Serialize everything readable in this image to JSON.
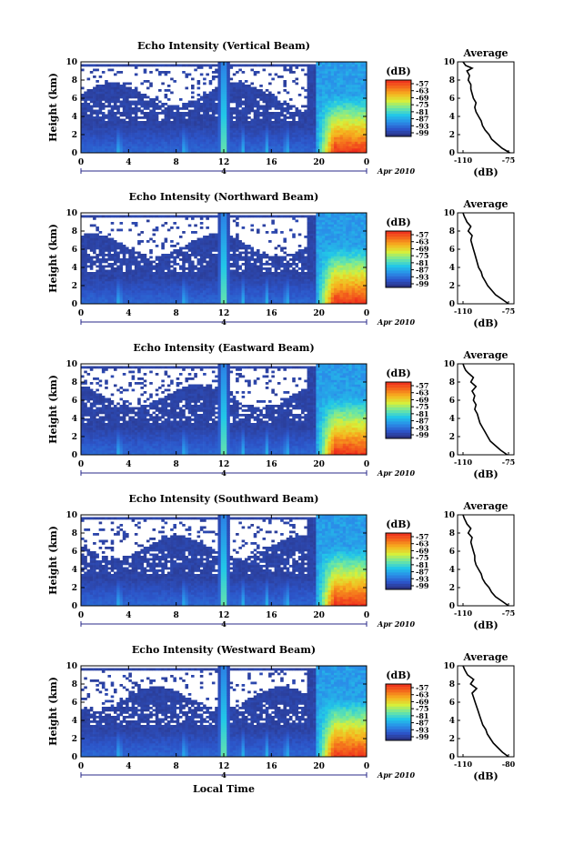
{
  "chart_data": [
    {
      "type": "heatmap",
      "title": "Echo Intensity (Vertical Beam)",
      "ylabel": "Height (km)",
      "ylim": [
        0,
        10
      ],
      "yticks": [
        "0",
        "2",
        "4",
        "6",
        "8",
        "10"
      ],
      "xlim": [
        0,
        24
      ],
      "xticks": [
        "0",
        "4",
        "8",
        "12",
        "16",
        "20",
        "0"
      ],
      "date_label": "Apr 2010",
      "date_day": "4",
      "colorbar": {
        "unit": "(dB)",
        "ticks": [
          "-57",
          "-63",
          "-69",
          "-75",
          "-81",
          "-87",
          "-93",
          "-99"
        ]
      },
      "profile": {
        "title": "Average",
        "xlabel": "(dB)",
        "xticks": [
          "-110",
          "-75"
        ],
        "yticks": [
          "0",
          "2",
          "4",
          "6",
          "8",
          "10"
        ],
        "x": [
          -74,
          -80,
          -84,
          -88,
          -90,
          -93,
          -95,
          -96,
          -98,
          -100,
          -101,
          -100,
          -102,
          -103,
          -104,
          -104,
          -106,
          -105,
          -107,
          -103,
          -108,
          -110
        ],
        "y": [
          0,
          0.5,
          1,
          1.5,
          2,
          2.5,
          3,
          3.5,
          4,
          4.5,
          5,
          5.5,
          6,
          6.5,
          7,
          7.5,
          8,
          8.5,
          9,
          9.3,
          9.6,
          10
        ]
      }
    },
    {
      "type": "heatmap",
      "title": "Echo Intensity (Northward Beam)",
      "ylabel": "Height (km)",
      "ylim": [
        0,
        10
      ],
      "yticks": [
        "0",
        "2",
        "4",
        "6",
        "8",
        "10"
      ],
      "xlim": [
        0,
        24
      ],
      "xticks": [
        "0",
        "4",
        "8",
        "12",
        "16",
        "20",
        "0"
      ],
      "date_label": "Apr 2010",
      "date_day": "4",
      "colorbar": {
        "unit": "(dB)",
        "ticks": [
          "-57",
          "-63",
          "-69",
          "-75",
          "-81",
          "-87",
          "-93",
          "-99"
        ]
      },
      "profile": {
        "title": "Average",
        "xlabel": "(dB)",
        "xticks": [
          "-110",
          "-75"
        ],
        "yticks": [
          "0",
          "2",
          "4",
          "6",
          "8",
          "10"
        ],
        "x": [
          -75,
          -80,
          -85,
          -88,
          -91,
          -93,
          -95,
          -96,
          -98,
          -99,
          -100,
          -101,
          -102,
          -103,
          -104,
          -103,
          -106,
          -104,
          -107,
          -108,
          -109,
          -110
        ],
        "y": [
          0,
          0.5,
          1,
          1.5,
          2,
          2.5,
          3,
          3.5,
          4,
          4.5,
          5,
          5.5,
          6,
          6.5,
          7,
          7.5,
          8,
          8.5,
          9,
          9.3,
          9.6,
          10
        ]
      }
    },
    {
      "type": "heatmap",
      "title": "Echo Intensity (Eastward Beam)",
      "ylabel": "Height (km)",
      "ylim": [
        0,
        10
      ],
      "yticks": [
        "0",
        "2",
        "4",
        "6",
        "8",
        "10"
      ],
      "xlim": [
        0,
        24
      ],
      "xticks": [
        "0",
        "4",
        "8",
        "12",
        "16",
        "20",
        "0"
      ],
      "date_label": "Apr 2010",
      "date_day": "4",
      "colorbar": {
        "unit": "(dB)",
        "ticks": [
          "-57",
          "-63",
          "-69",
          "-75",
          "-81",
          "-87",
          "-93",
          "-99"
        ]
      },
      "profile": {
        "title": "Average",
        "xlabel": "(dB)",
        "xticks": [
          "-110",
          "-75"
        ],
        "yticks": [
          "0",
          "2",
          "4",
          "6",
          "8",
          "10"
        ],
        "x": [
          -76,
          -81,
          -85,
          -89,
          -91,
          -93,
          -95,
          -97,
          -98,
          -99,
          -101,
          -100,
          -102,
          -101,
          -103,
          -100,
          -104,
          -102,
          -106,
          -108,
          -109,
          -110
        ],
        "y": [
          0,
          0.5,
          1,
          1.5,
          2,
          2.5,
          3,
          3.5,
          4,
          4.5,
          5,
          5.5,
          6,
          6.5,
          7,
          7.5,
          8,
          8.5,
          9,
          9.3,
          9.6,
          10
        ]
      }
    },
    {
      "type": "heatmap",
      "title": "Echo Intensity (Southward Beam)",
      "ylabel": "Height (km)",
      "ylim": [
        0,
        10
      ],
      "yticks": [
        "0",
        "2",
        "4",
        "6",
        "8",
        "10"
      ],
      "xlim": [
        0,
        24
      ],
      "xticks": [
        "0",
        "4",
        "8",
        "12",
        "16",
        "20",
        "0"
      ],
      "date_label": "Apr 2010",
      "date_day": "4",
      "colorbar": {
        "unit": "(dB)",
        "ticks": [
          "-57",
          "-63",
          "-69",
          "-75",
          "-81",
          "-87",
          "-93",
          "-99"
        ]
      },
      "profile": {
        "title": "Average",
        "xlabel": "(dB)",
        "xticks": [
          "-110",
          "-75"
        ],
        "yticks": [
          "0",
          "2",
          "4",
          "6",
          "8",
          "10"
        ],
        "x": [
          -75,
          -80,
          -85,
          -88,
          -90,
          -93,
          -95,
          -96,
          -98,
          -100,
          -101,
          -101,
          -102,
          -103,
          -104,
          -103,
          -106,
          -104,
          -107,
          -108,
          -109,
          -110
        ],
        "y": [
          0,
          0.5,
          1,
          1.5,
          2,
          2.5,
          3,
          3.5,
          4,
          4.5,
          5,
          5.5,
          6,
          6.5,
          7,
          7.5,
          8,
          8.5,
          9,
          9.3,
          9.6,
          10
        ]
      }
    },
    {
      "type": "heatmap",
      "title": "Echo Intensity (Westward Beam)",
      "ylabel": "Height (km)",
      "ylim": [
        0,
        10
      ],
      "yticks": [
        "0",
        "2",
        "4",
        "6",
        "8",
        "10"
      ],
      "xlim": [
        0,
        24
      ],
      "xticks": [
        "0",
        "4",
        "8",
        "12",
        "16",
        "20",
        "0"
      ],
      "date_label": "Apr 2010",
      "date_day": "4",
      "xlabel": "Local Time",
      "colorbar": {
        "unit": "(dB)",
        "ticks": [
          "-57",
          "-63",
          "-69",
          "-75",
          "-81",
          "-87",
          "-93",
          "-99"
        ]
      },
      "profile": {
        "title": "Average",
        "xlabel": "(dB)",
        "xticks": [
          "-110",
          "-80"
        ],
        "yticks": [
          "0",
          "2",
          "4",
          "6",
          "8",
          "10"
        ],
        "x": [
          -80,
          -84,
          -87,
          -90,
          -92,
          -94,
          -95,
          -97,
          -98,
          -99,
          -100,
          -101,
          -102,
          -103,
          -104,
          -101,
          -105,
          -103,
          -107,
          -108,
          -109,
          -110
        ],
        "y": [
          0,
          0.5,
          1,
          1.5,
          2,
          2.5,
          3,
          3.5,
          4,
          4.5,
          5,
          5.5,
          6,
          6.5,
          7,
          7.5,
          8,
          8.5,
          9,
          9.3,
          9.6,
          10
        ]
      }
    }
  ],
  "colors": {
    "background_blue": "#2e3570",
    "colormap": [
      "#2b2f7a",
      "#2c54c8",
      "#2a8de8",
      "#22c7e8",
      "#6fe8a0",
      "#d7ef3a",
      "#f6b41e",
      "#f46a1c",
      "#ee2a1d"
    ]
  }
}
